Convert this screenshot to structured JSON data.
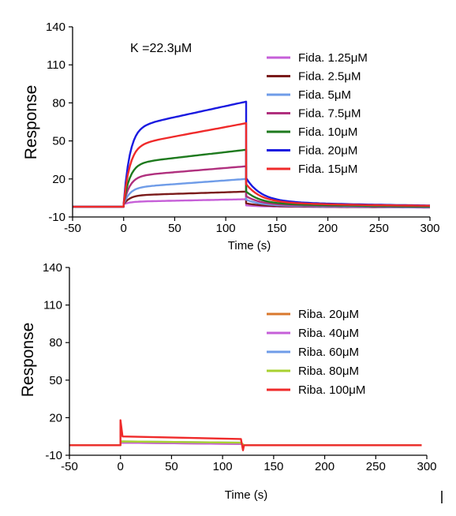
{
  "chart_data": [
    {
      "type": "line",
      "xlabel": "Time (s)",
      "ylabel": "Response",
      "annotation": "K =22.3μM",
      "xlim": [
        -50,
        300
      ],
      "ylim": [
        -10,
        140
      ],
      "xticks": [
        -50,
        0,
        50,
        100,
        150,
        200,
        250,
        300
      ],
      "yticks": [
        -10,
        20,
        50,
        80,
        110,
        140
      ],
      "legend_position": "top-right",
      "series": [
        {
          "name": "Fida. 1.25μM",
          "color": "#c65fd8",
          "plateau_start": 2,
          "plateau_end": 4,
          "dissoc_end": -4
        },
        {
          "name": "Fida. 2.5μM",
          "color": "#7a1a1a",
          "plateau_start": 7,
          "plateau_end": 10,
          "dissoc_end": -4
        },
        {
          "name": "Fida. 5μM",
          "color": "#6f9ce8",
          "plateau_start": 13,
          "plateau_end": 20,
          "dissoc_end": -4
        },
        {
          "name": "Fida. 7.5μM",
          "color": "#b0307e",
          "plateau_start": 22,
          "plateau_end": 30,
          "dissoc_end": -3
        },
        {
          "name": "Fida. 10μM",
          "color": "#1e7a1e",
          "plateau_start": 32,
          "plateau_end": 43,
          "dissoc_end": -3
        },
        {
          "name": "Fida. 20μM",
          "color": "#1a1ae0",
          "plateau_start": 60,
          "plateau_end": 81,
          "dissoc_end": -2
        },
        {
          "name": "Fida. 15μM",
          "color": "#ef2a2a",
          "plateau_start": 46,
          "plateau_end": 64,
          "dissoc_end": -2
        }
      ]
    },
    {
      "type": "line",
      "xlabel": "Time (s)",
      "ylabel": "Response",
      "xlim": [
        -50,
        300
      ],
      "ylim": [
        -10,
        140
      ],
      "xticks": [
        -50,
        0,
        50,
        100,
        150,
        200,
        250,
        300
      ],
      "yticks": [
        -10,
        20,
        50,
        80,
        110,
        140
      ],
      "legend_position": "right",
      "series": [
        {
          "name": "Riba. 20μM",
          "color": "#d9782c",
          "level": -1
        },
        {
          "name": "Riba. 40μM",
          "color": "#c65fd8",
          "level": -1
        },
        {
          "name": "Riba. 60μM",
          "color": "#6f9ce8",
          "level": 0
        },
        {
          "name": "Riba. 80μM",
          "color": "#a8d030",
          "level": 0
        },
        {
          "name": "Riba. 100μM",
          "color": "#ef2a2a",
          "level": 2,
          "spike_start": 18,
          "spike_end": -6
        }
      ]
    }
  ]
}
